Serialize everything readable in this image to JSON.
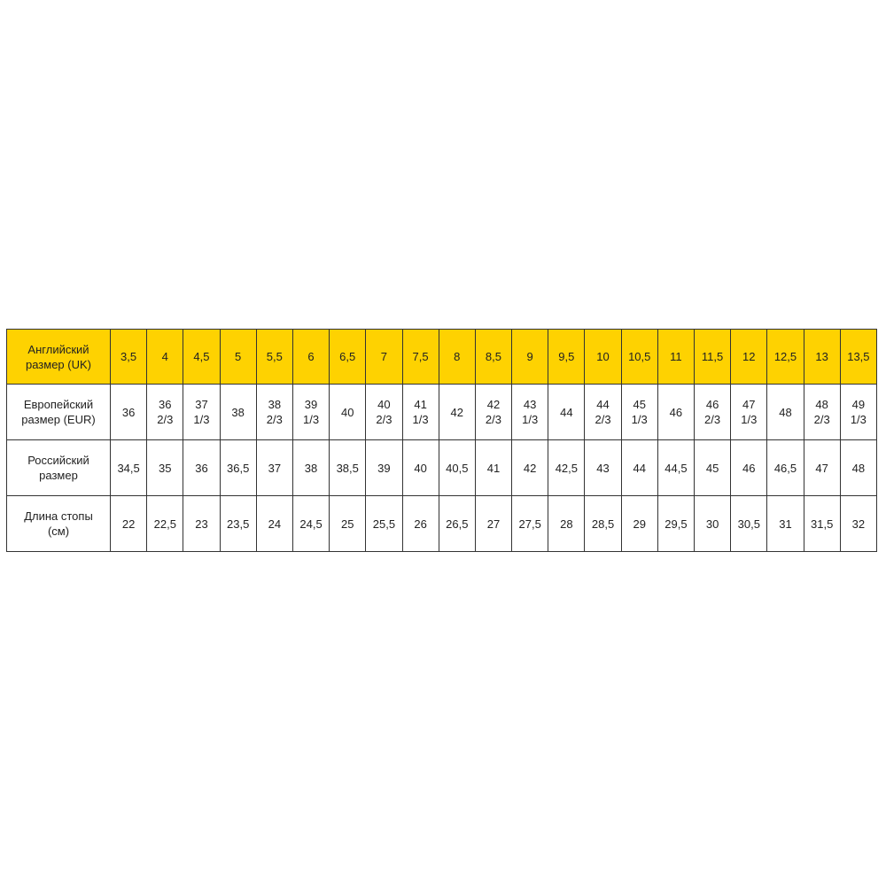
{
  "accent_color": "#fed201",
  "table": {
    "rows": [
      {
        "label": "Английский\nразмер (UK)",
        "header": true,
        "values": [
          "3,5",
          "4",
          "4,5",
          "5",
          "5,5",
          "6",
          "6,5",
          "7",
          "7,5",
          "8",
          "8,5",
          "9",
          "9,5",
          "10",
          "10,5",
          "11",
          "11,5",
          "12",
          "12,5",
          "13",
          "13,5"
        ]
      },
      {
        "label": "Европейский\nразмер (EUR)",
        "header": false,
        "values": [
          "36",
          "36\n2/3",
          "37\n1/3",
          "38",
          "38\n2/3",
          "39\n1/3",
          "40",
          "40\n2/3",
          "41\n1/3",
          "42",
          "42\n2/3",
          "43\n1/3",
          "44",
          "44\n2/3",
          "45\n1/3",
          "46",
          "46\n2/3",
          "47\n1/3",
          "48",
          "48\n2/3",
          "49\n1/3"
        ]
      },
      {
        "label": "Российский\nразмер",
        "header": false,
        "values": [
          "34,5",
          "35",
          "36",
          "36,5",
          "37",
          "38",
          "38,5",
          "39",
          "40",
          "40,5",
          "41",
          "42",
          "42,5",
          "43",
          "44",
          "44,5",
          "45",
          "46",
          "46,5",
          "47",
          "48"
        ]
      },
      {
        "label": "Длина стопы\n(см)",
        "header": false,
        "values": [
          "22",
          "22,5",
          "23",
          "23,5",
          "24",
          "24,5",
          "25",
          "25,5",
          "26",
          "26,5",
          "27",
          "27,5",
          "28",
          "28,5",
          "29",
          "29,5",
          "30",
          "30,5",
          "31",
          "31,5",
          "32"
        ]
      }
    ]
  }
}
